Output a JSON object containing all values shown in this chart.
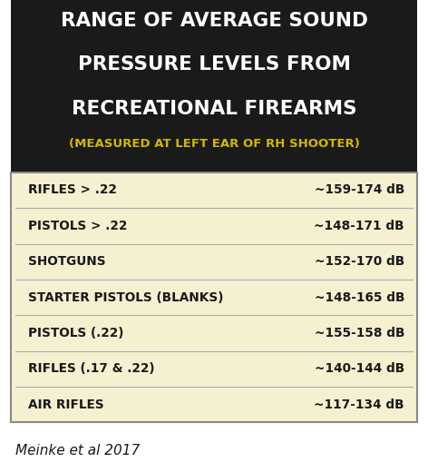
{
  "title_line1": "RANGE OF AVERAGE SOUND",
  "title_line2": "PRESSURE LEVELS FROM",
  "title_line3": "RECREATIONAL FIREARMS",
  "subtitle": "(MEASURED AT LEFT EAR OF RH SHOOTER)",
  "header_bg": "#1a1a1a",
  "header_text_color": "#ffffff",
  "subtitle_text_color": "#d4b800",
  "table_bg": "#f5f0d0",
  "table_border_color": "#888888",
  "row_line_color": "#aaaaaa",
  "row_text_color": "#1a1a1a",
  "caption": "Meinke et al 2017",
  "caption_color": "#1a1a1a",
  "rows": [
    [
      "RIFLES > .22",
      "~159-174 dB"
    ],
    [
      "PISTOLS > .22",
      "~148-171 dB"
    ],
    [
      "SHOTGUNS",
      "~152-170 dB"
    ],
    [
      "STARTER PISTOLS (BLANKS)",
      "~148-165 dB"
    ],
    [
      "PISTOLS (.22)",
      "~155-158 dB"
    ],
    [
      "RIFLES (.17 & .22)",
      "~140-144 dB"
    ],
    [
      "AIR RIFLES",
      "~117-134 dB"
    ]
  ],
  "fig_width": 4.72,
  "fig_height": 5.2,
  "dpi": 100
}
